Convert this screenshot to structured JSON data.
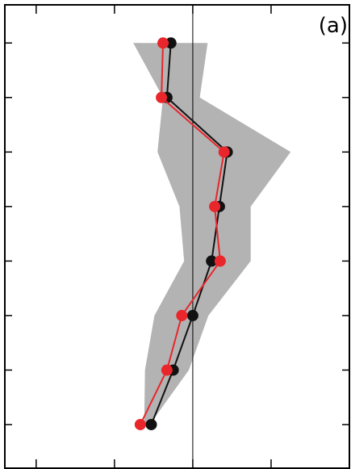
{
  "chart_data": {
    "type": "line",
    "panel_label": "(a)",
    "title": "",
    "xlabel": "",
    "ylabel": "",
    "xlim": [
      -2.4,
      2.0
    ],
    "ylim": [
      0.3,
      8.8
    ],
    "grid": false,
    "legend": "none",
    "reference_line_x": 0,
    "levels": [
      1,
      2,
      3,
      4,
      5,
      6,
      7,
      8
    ],
    "band": {
      "fill_color": "#b3b3b3",
      "min": [
        -0.76,
        -0.38,
        -0.45,
        -0.17,
        -0.11,
        -0.49,
        -0.61,
        -0.62
      ],
      "max": [
        0.19,
        0.09,
        1.25,
        0.74,
        0.74,
        0.2,
        -0.05,
        -0.55
      ]
    },
    "series": [
      {
        "color": "#111111",
        "marker": "circle",
        "x": [
          -0.28,
          -0.33,
          0.44,
          0.34,
          0.24,
          0.0,
          -0.25,
          -0.53
        ],
        "y": [
          1,
          2,
          3,
          4,
          5,
          6,
          7,
          8
        ]
      },
      {
        "color": "#e8262b",
        "marker": "circle",
        "x": [
          -0.38,
          -0.4,
          0.4,
          0.28,
          0.35,
          -0.14,
          -0.33,
          -0.67
        ],
        "y": [
          1,
          2,
          3,
          4,
          5,
          6,
          7,
          8
        ]
      }
    ]
  }
}
